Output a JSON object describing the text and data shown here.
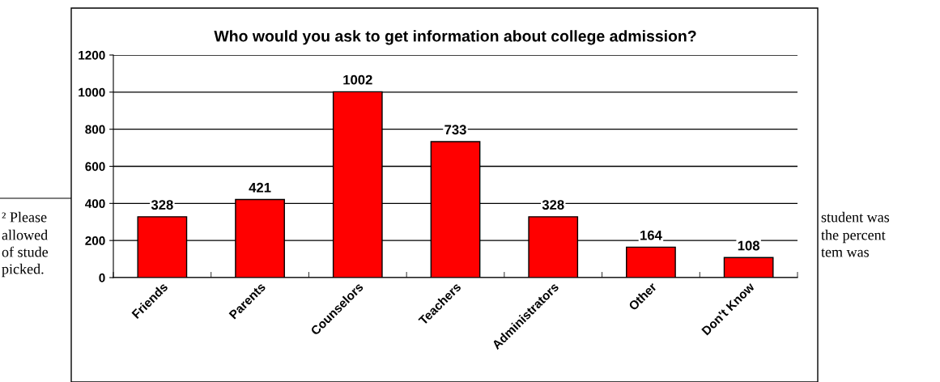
{
  "chart_data": {
    "type": "bar",
    "title": "Who would you ask to get information about college admission?",
    "categories": [
      "Friends",
      "Parents",
      "Counselors",
      "Teachers",
      "Administrators",
      "Other",
      "Don't Know"
    ],
    "values": [
      328,
      421,
      1002,
      733,
      328,
      164,
      108
    ],
    "color": "#ff0000",
    "ylim": [
      0,
      1200
    ],
    "yticks": [
      0,
      200,
      400,
      600,
      800,
      1000,
      1200
    ],
    "grid": "y",
    "data_labels": true,
    "legend": false,
    "annotations": [
      "² Please",
      "allowed",
      "of stude",
      "picked.",
      "student was",
      "the percent",
      "tem was"
    ]
  }
}
